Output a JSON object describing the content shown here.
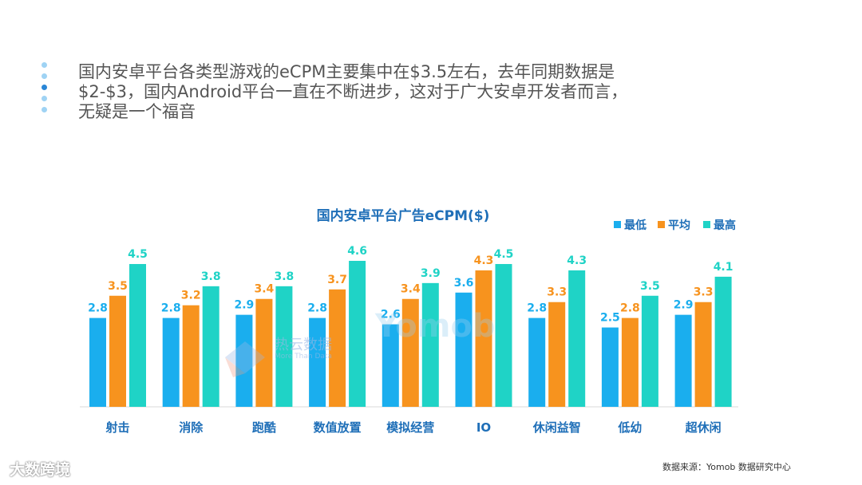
{
  "summary": {
    "line1": "国内安卓平台各类型游戏的eCPM主要集中在$3.5左右，去年同期数据是",
    "line2": "$2-$3，国内Android平台一直在不断进步，这对于广大安卓开发者而言，",
    "line3": "无疑是一个福音"
  },
  "source": "数据来源：Yomob 数据研究中心",
  "brand": "大数跨境",
  "watermark": {
    "main": "热云数据",
    "sub": "More Than Data",
    "yomob": "Yomob"
  },
  "colors": {
    "min": "#1aaeee",
    "avg": "#f7931e",
    "max": "#1fd3c6",
    "title": "#1f6fb8",
    "category": "#1f6fb8",
    "bullets": [
      "#9fd3f4",
      "#9fd3f4",
      "#2a86d6",
      "#9fd3f4",
      "#9fd3f4"
    ]
  },
  "chart_data": {
    "type": "bar",
    "title": "国内安卓平台广告eCPM($)",
    "categories": [
      "射击",
      "消除",
      "跑酷",
      "数值放置",
      "模拟经营",
      "IO",
      "休闲益智",
      "低幼",
      "超休闲"
    ],
    "series": [
      {
        "name": "最低",
        "values": [
          2.8,
          2.8,
          2.9,
          2.8,
          2.6,
          3.6,
          2.8,
          2.5,
          2.9
        ]
      },
      {
        "name": "平均",
        "values": [
          3.5,
          3.2,
          3.4,
          3.7,
          3.4,
          4.3,
          3.3,
          2.8,
          3.3
        ]
      },
      {
        "name": "最高",
        "values": [
          4.5,
          3.8,
          3.8,
          4.6,
          3.9,
          4.5,
          4.3,
          3.5,
          4.1
        ]
      }
    ],
    "ylim": [
      0,
      4.6
    ],
    "legend": "top-right",
    "grid": false
  }
}
